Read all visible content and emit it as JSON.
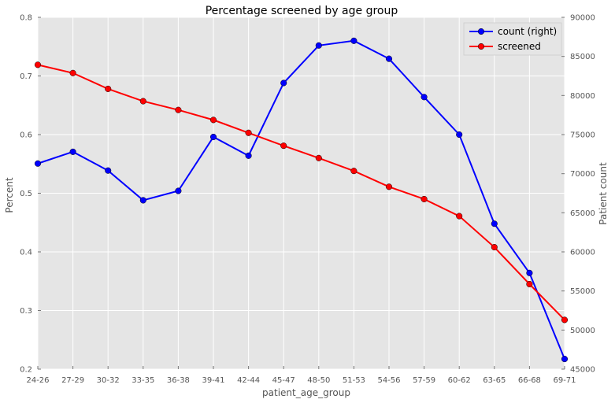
{
  "chart_data": {
    "type": "line",
    "title": "Percentage screened by age group",
    "xlabel": "patient_age_group",
    "ylabel": "Percent",
    "ylabel_right": "Patient count",
    "categories": [
      "24-26",
      "27-29",
      "30-32",
      "33-35",
      "36-38",
      "39-41",
      "42-44",
      "45-47",
      "48-50",
      "51-53",
      "54-56",
      "57-59",
      "60-62",
      "63-65",
      "66-68",
      "69-71"
    ],
    "ylim": [
      0.2,
      0.8
    ],
    "ylim_right": [
      45000,
      90000
    ],
    "yticks": [
      "0.2",
      "0.3",
      "0.4",
      "0.5",
      "0.6",
      "0.7",
      "0.8"
    ],
    "yticks_right": [
      "45000",
      "50000",
      "55000",
      "60000",
      "65000",
      "70000",
      "75000",
      "80000",
      "85000",
      "90000"
    ],
    "grid": true,
    "legend_position": "top-right",
    "series": [
      {
        "name": "count (right)",
        "axis": "right",
        "color": "#0000ff",
        "values": [
          71300,
          72800,
          70400,
          66600,
          67800,
          74700,
          72300,
          81600,
          86400,
          87000,
          84700,
          79800,
          75000,
          63600,
          57300,
          46300
        ]
      },
      {
        "name": "screened",
        "axis": "left",
        "color": "#ff0000",
        "values": [
          0.719,
          0.705,
          0.678,
          0.657,
          0.642,
          0.625,
          0.603,
          0.581,
          0.56,
          0.538,
          0.511,
          0.49,
          0.461,
          0.408,
          0.345,
          0.284
        ]
      }
    ]
  }
}
